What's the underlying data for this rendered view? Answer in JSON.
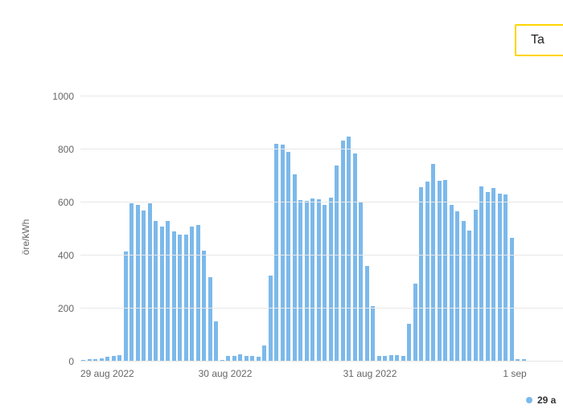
{
  "button": {
    "label": "Ta"
  },
  "legend": {
    "series_label": "29 a",
    "dot_color": "#7cb9eb"
  },
  "chart": {
    "type": "bar",
    "ylabel": "öre/kWh",
    "label_fontsize": 12,
    "label_color": "#666666",
    "ylim": [
      0,
      1000
    ],
    "ytick_step": 200,
    "yticks": [
      0,
      200,
      400,
      600,
      800,
      1000
    ],
    "grid_color": "#e7e7e7",
    "background_color": "#ffffff",
    "bar_color": "#7cb9eb",
    "bar_gap_ratio": 0.35,
    "xlim_hours": [
      0,
      80
    ],
    "x_ticks": [
      {
        "hour": 0,
        "label": "29 aug 2022"
      },
      {
        "hour": 24,
        "label": "30 aug 2022"
      },
      {
        "hour": 48,
        "label": "31 aug 2022"
      },
      {
        "hour": 72,
        "label": "1 sep"
      }
    ],
    "values": [
      5,
      8,
      10,
      12,
      18,
      22,
      25,
      415,
      598,
      590,
      570,
      598,
      530,
      510,
      530,
      490,
      480,
      478,
      510,
      515,
      418,
      318,
      152,
      5,
      20,
      20,
      26,
      22,
      20,
      18,
      60,
      325,
      820,
      818,
      790,
      705,
      610,
      605,
      615,
      612,
      590,
      618,
      740,
      832,
      850,
      785,
      600,
      360,
      208,
      20,
      22,
      25,
      25,
      22,
      143,
      295,
      658,
      680,
      745,
      682,
      685,
      590,
      568,
      530,
      495,
      572,
      660,
      640,
      656,
      632,
      630,
      468,
      8,
      10
    ]
  }
}
